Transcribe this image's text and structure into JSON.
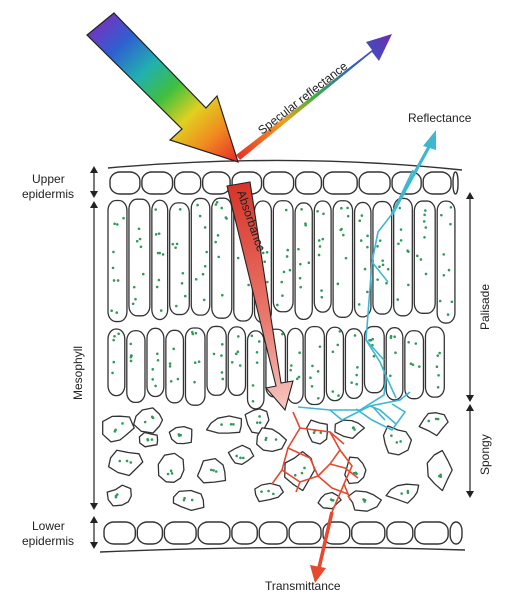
{
  "labels": {
    "specular_reflectance": "Specular reflectance",
    "reflectance": "Reflectance",
    "absorbance": "Absorbance",
    "transmittance": "Transmittance",
    "upper_epidermis": [
      "Upper",
      "epidermis"
    ],
    "lower_epidermis": [
      "Lower",
      "epidermis"
    ],
    "mesophyll": "Mesophyll",
    "palisade": "Palisade",
    "spongy": "Spongy"
  },
  "colors": {
    "incoming_light": [
      "#7b2fbf",
      "#2f5fd0",
      "#21b0b0",
      "#3fbf3f",
      "#e0d020",
      "#f08a20",
      "#e8302a"
    ],
    "specular": [
      "#e8302a",
      "#f0a020",
      "#40b040",
      "#2a60c8",
      "#6a2fb0"
    ],
    "reflected_path": "#3fb7d0",
    "transmitted_path": "#e64a2e",
    "absorbance_arrow": "#e04a3a",
    "chloroplast": "#2f9a5a",
    "cell_outline": "#333333"
  }
}
